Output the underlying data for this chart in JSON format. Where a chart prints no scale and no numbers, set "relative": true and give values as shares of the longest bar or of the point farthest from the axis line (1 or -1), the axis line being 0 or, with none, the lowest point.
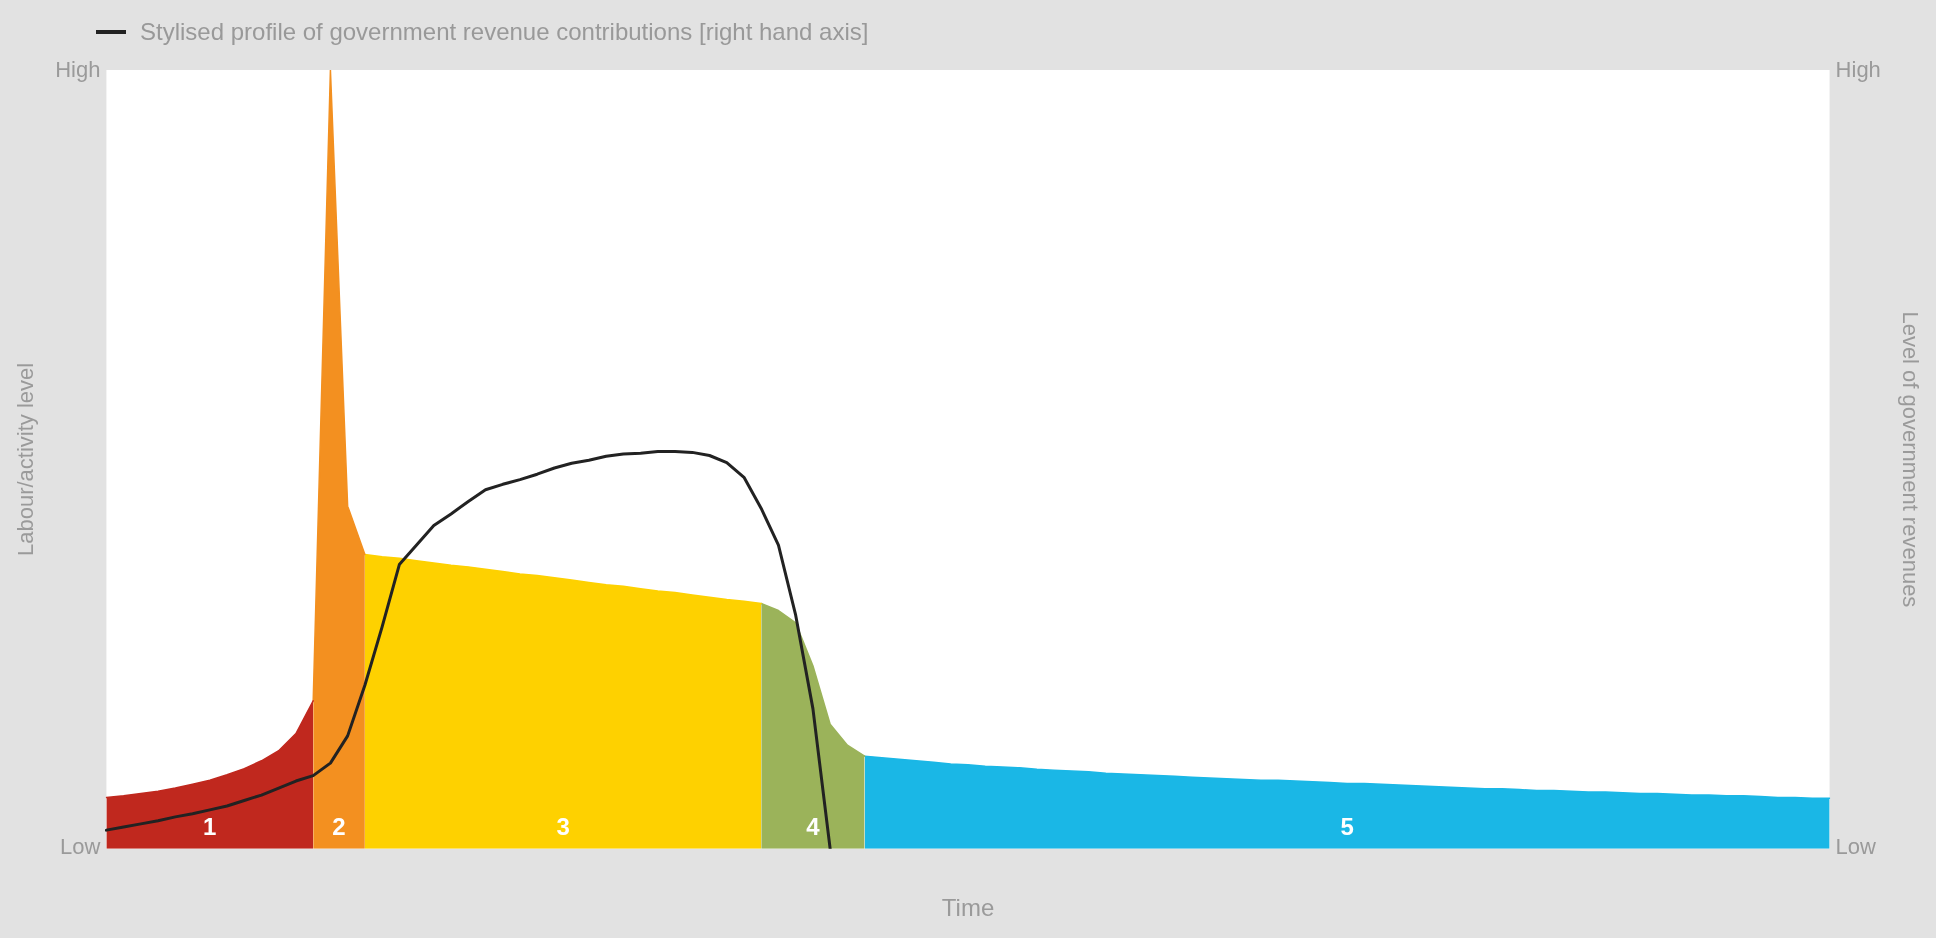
{
  "chart_data": {
    "type": "area",
    "relative": true,
    "xlabel": "Time",
    "ylabel": "Labour/activity level",
    "y2label": "Level of government revenues",
    "annotations": [
      "High",
      "Low",
      "High",
      "Low"
    ],
    "legend": "top left",
    "categories": [
      null,
      null,
      null,
      null,
      null,
      null,
      null,
      null,
      null,
      null,
      null,
      null,
      null,
      null,
      null,
      null,
      null,
      null,
      null,
      null,
      null,
      null,
      null,
      null,
      null,
      null,
      null,
      null,
      null,
      null,
      null,
      null,
      null,
      null,
      null,
      null,
      null,
      null,
      null,
      null,
      null,
      null,
      null,
      null,
      null,
      null,
      null,
      null,
      null,
      null,
      null,
      null,
      null,
      null,
      null,
      null,
      null,
      null,
      null,
      null,
      null,
      null,
      null,
      null,
      null,
      null,
      null,
      null,
      null,
      null,
      null,
      null,
      null,
      null,
      null,
      null,
      null,
      null,
      null,
      null,
      null,
      null,
      null,
      null,
      null,
      null,
      null,
      null,
      null,
      null,
      null,
      null,
      null,
      null,
      null,
      null,
      null,
      null,
      null,
      null,
      null
    ],
    "series": [
      {
        "name": "1",
        "color": "#c0281e",
        "values": [
          0.066,
          0.068,
          0.071,
          0.074,
          0.078,
          0.083,
          0.088,
          0.095,
          0.103,
          0.113,
          0.126,
          0.148,
          0.19,
          null,
          null,
          null,
          null,
          null,
          null,
          null,
          null,
          null,
          null,
          null,
          null,
          null,
          null,
          null,
          null,
          null,
          null,
          null,
          null,
          null,
          null,
          null,
          null,
          null,
          null,
          null,
          null,
          null,
          null,
          null,
          null,
          null,
          null,
          null,
          null,
          null,
          null,
          null,
          null,
          null,
          null,
          null,
          null,
          null,
          null,
          null,
          null,
          null,
          null,
          null,
          null,
          null,
          null,
          null,
          null,
          null,
          null,
          null,
          null,
          null,
          null,
          null,
          null,
          null,
          null,
          null,
          null,
          null,
          null,
          null,
          null,
          null,
          null,
          null,
          null,
          null,
          null,
          null,
          null,
          null,
          null,
          null,
          null,
          null,
          null,
          null,
          null
        ]
      },
      {
        "name": "2",
        "color": "#f39020",
        "values": [
          null,
          null,
          null,
          null,
          null,
          null,
          null,
          null,
          null,
          null,
          null,
          null,
          0.19,
          1,
          0.44,
          0.378,
          null,
          null,
          null,
          null,
          null,
          null,
          null,
          null,
          null,
          null,
          null,
          null,
          null,
          null,
          null,
          null,
          null,
          null,
          null,
          null,
          null,
          null,
          null,
          null,
          null,
          null,
          null,
          null,
          null,
          null,
          null,
          null,
          null,
          null,
          null,
          null,
          null,
          null,
          null,
          null,
          null,
          null,
          null,
          null,
          null,
          null,
          null,
          null,
          null,
          null,
          null,
          null,
          null,
          null,
          null,
          null,
          null,
          null,
          null,
          null,
          null,
          null,
          null,
          null,
          null,
          null,
          null,
          null,
          null,
          null,
          null,
          null,
          null,
          null,
          null,
          null,
          null,
          null,
          null,
          null,
          null,
          null,
          null,
          null,
          null
        ]
      },
      {
        "name": "3",
        "color": "#fed100",
        "values": [
          null,
          null,
          null,
          null,
          null,
          null,
          null,
          null,
          null,
          null,
          null,
          null,
          null,
          null,
          null,
          0.378,
          0.375,
          0.373,
          0.37,
          0.367,
          0.364,
          0.362,
          0.359,
          0.356,
          0.353,
          0.351,
          0.348,
          0.345,
          0.342,
          0.339,
          0.337,
          0.334,
          0.331,
          0.329,
          0.326,
          0.323,
          0.32,
          0.318,
          0.315,
          null,
          null,
          null,
          null,
          null,
          null,
          null,
          null,
          null,
          null,
          null,
          null,
          null,
          null,
          null,
          null,
          null,
          null,
          null,
          null,
          null,
          null,
          null,
          null,
          null,
          null,
          null,
          null,
          null,
          null,
          null,
          null,
          null,
          null,
          null,
          null,
          null,
          null,
          null,
          null,
          null,
          null,
          null,
          null,
          null,
          null,
          null,
          null,
          null,
          null,
          null,
          null,
          null,
          null,
          null,
          null,
          null,
          null,
          null,
          null,
          null,
          null
        ]
      },
      {
        "name": "4",
        "color": "#9bb35a",
        "values": [
          null,
          null,
          null,
          null,
          null,
          null,
          null,
          null,
          null,
          null,
          null,
          null,
          null,
          null,
          null,
          null,
          null,
          null,
          null,
          null,
          null,
          null,
          null,
          null,
          null,
          null,
          null,
          null,
          null,
          null,
          null,
          null,
          null,
          null,
          null,
          null,
          null,
          null,
          0.315,
          0.306,
          0.29,
          0.235,
          0.16,
          0.133,
          0.119,
          null,
          null,
          null,
          null,
          null,
          null,
          null,
          null,
          null,
          null,
          null,
          null,
          null,
          null,
          null,
          null,
          null,
          null,
          null,
          null,
          null,
          null,
          null,
          null,
          null,
          null,
          null,
          null,
          null,
          null,
          null,
          null,
          null,
          null,
          null,
          null,
          null,
          null,
          null,
          null,
          null,
          null,
          null,
          null,
          null,
          null,
          null,
          null,
          null,
          null,
          null,
          null,
          null,
          null,
          null,
          null
        ]
      },
      {
        "name": "5",
        "color": "#1ab7e6",
        "values": [
          null,
          null,
          null,
          null,
          null,
          null,
          null,
          null,
          null,
          null,
          null,
          null,
          null,
          null,
          null,
          null,
          null,
          null,
          null,
          null,
          null,
          null,
          null,
          null,
          null,
          null,
          null,
          null,
          null,
          null,
          null,
          null,
          null,
          null,
          null,
          null,
          null,
          null,
          null,
          null,
          null,
          null,
          null,
          null,
          0.119,
          0.117,
          0.115,
          0.113,
          0.111,
          0.109,
          0.108,
          0.106,
          0.105,
          0.104,
          0.102,
          0.101,
          0.1,
          0.099,
          0.097,
          0.096,
          0.095,
          0.094,
          0.093,
          0.092,
          0.091,
          0.09,
          0.089,
          0.088,
          0.088,
          0.087,
          0.086,
          0.085,
          0.084,
          0.084,
          0.083,
          0.082,
          0.081,
          0.08,
          0.079,
          0.078,
          0.077,
          0.077,
          0.076,
          0.075,
          0.075,
          0.074,
          0.073,
          0.073,
          0.072,
          0.071,
          0.071,
          0.07,
          0.069,
          0.069,
          0.068,
          0.068,
          0.067,
          0.066,
          0.066,
          0.065,
          0.065
        ]
      },
      {
        "name": "Stylised profile of government revenue contributions [right hand axis]",
        "type": "line",
        "color": "#222222",
        "values": [
          0.024,
          0.028,
          0.032,
          0.036,
          0.041,
          0.045,
          0.05,
          0.055,
          0.062,
          0.069,
          0.078,
          0.087,
          0.094,
          0.11,
          0.145,
          0.21,
          0.285,
          0.365,
          0.39,
          0.415,
          0.43,
          0.446,
          0.461,
          0.468,
          0.474,
          0.481,
          0.489,
          0.495,
          0.499,
          0.504,
          0.507,
          0.508,
          0.51,
          0.51,
          0.509,
          0.505,
          0.496,
          0.477,
          0.437,
          0.39,
          0.3,
          0.18,
          0,
          null,
          null,
          null,
          null,
          null,
          null,
          null,
          null,
          null,
          null,
          null,
          null,
          null,
          null,
          null,
          null,
          null,
          null,
          null,
          null,
          null,
          null,
          null,
          null,
          null,
          null,
          null,
          null,
          null,
          null,
          null,
          null,
          null,
          null,
          null,
          null,
          null,
          null,
          null,
          null,
          null,
          null,
          null,
          null,
          null,
          null,
          null,
          null,
          null,
          null,
          null,
          null,
          null,
          null,
          null,
          null,
          null,
          null
        ]
      }
    ]
  }
}
